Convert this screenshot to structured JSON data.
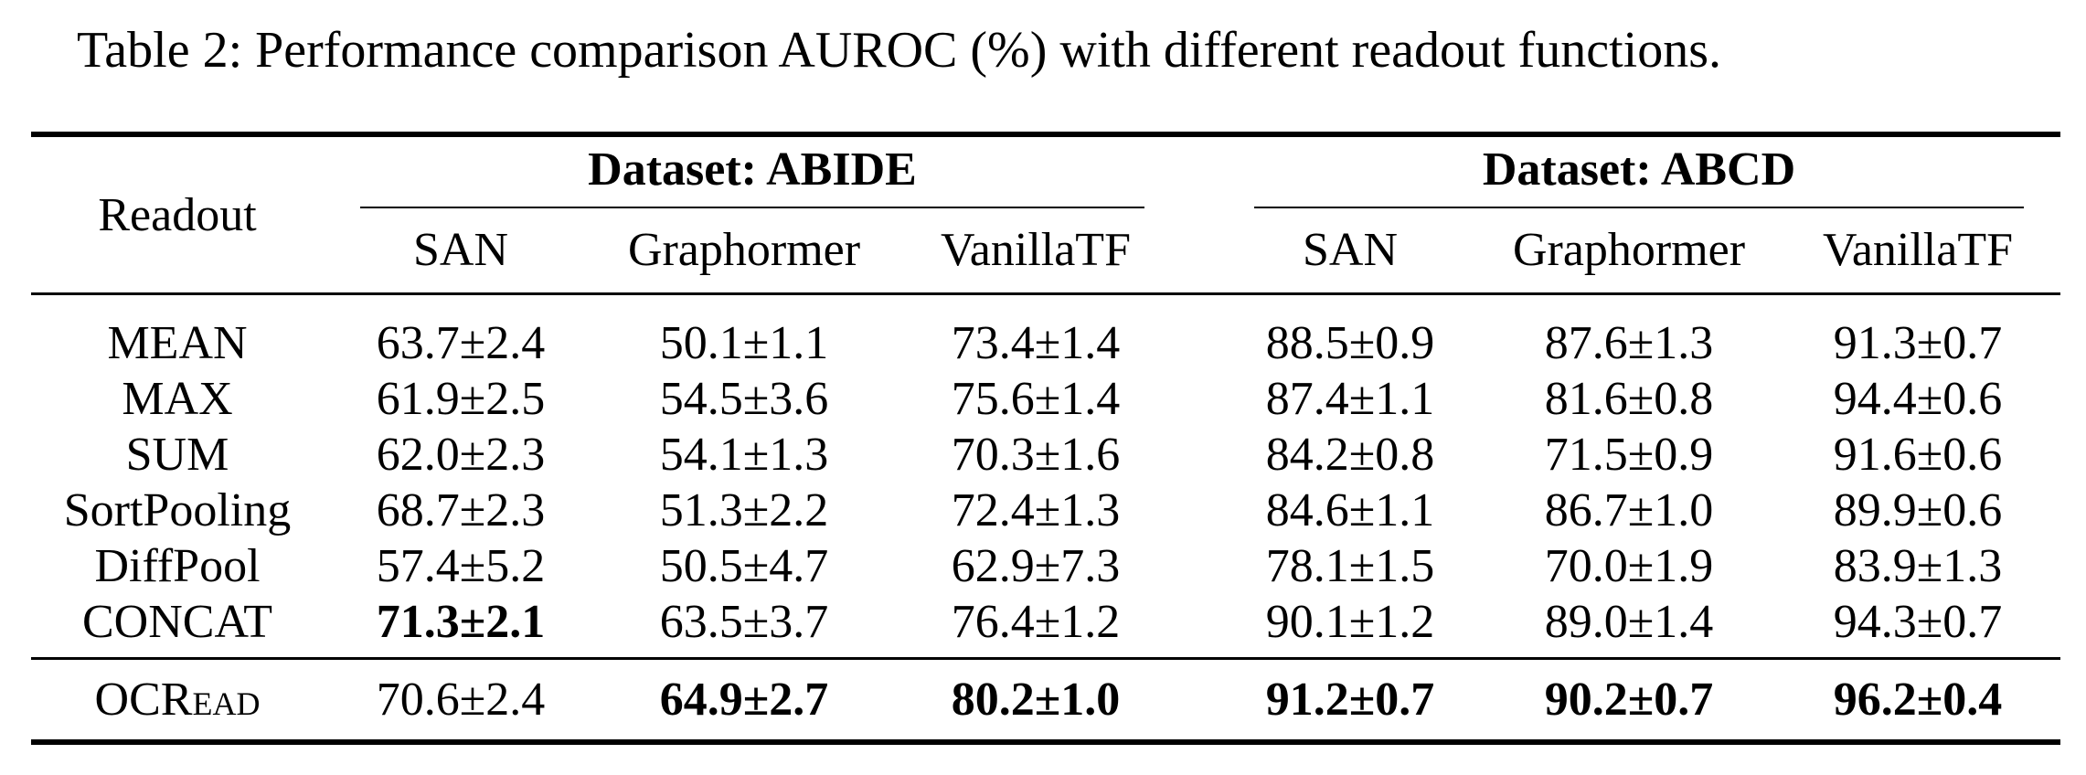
{
  "caption": "Table 2: Performance comparison AUROC (%) with different readout functions.",
  "table": {
    "corner_header": "Readout",
    "groups": [
      {
        "title": "Dataset: ABIDE",
        "columns": [
          "SAN",
          "Graphormer",
          "VanillaTF"
        ]
      },
      {
        "title": "Dataset: ABCD",
        "columns": [
          "SAN",
          "Graphormer",
          "VanillaTF"
        ]
      }
    ],
    "body_rows": [
      {
        "label": "MEAN",
        "smallcaps": false,
        "values": [
          {
            "text": "63.7±2.4",
            "bold": false
          },
          {
            "text": "50.1±1.1",
            "bold": false
          },
          {
            "text": "73.4±1.4",
            "bold": false
          },
          {
            "text": "88.5±0.9",
            "bold": false
          },
          {
            "text": "87.6±1.3",
            "bold": false
          },
          {
            "text": "91.3±0.7",
            "bold": false
          }
        ]
      },
      {
        "label": "MAX",
        "smallcaps": false,
        "values": [
          {
            "text": "61.9±2.5",
            "bold": false
          },
          {
            "text": "54.5±3.6",
            "bold": false
          },
          {
            "text": "75.6±1.4",
            "bold": false
          },
          {
            "text": "87.4±1.1",
            "bold": false
          },
          {
            "text": "81.6±0.8",
            "bold": false
          },
          {
            "text": "94.4±0.6",
            "bold": false
          }
        ]
      },
      {
        "label": "SUM",
        "smallcaps": false,
        "values": [
          {
            "text": "62.0±2.3",
            "bold": false
          },
          {
            "text": "54.1±1.3",
            "bold": false
          },
          {
            "text": "70.3±1.6",
            "bold": false
          },
          {
            "text": "84.2±0.8",
            "bold": false
          },
          {
            "text": "71.5±0.9",
            "bold": false
          },
          {
            "text": "91.6±0.6",
            "bold": false
          }
        ]
      },
      {
        "label": "SortPooling",
        "smallcaps": false,
        "values": [
          {
            "text": "68.7±2.3",
            "bold": false
          },
          {
            "text": "51.3±2.2",
            "bold": false
          },
          {
            "text": "72.4±1.3",
            "bold": false
          },
          {
            "text": "84.6±1.1",
            "bold": false
          },
          {
            "text": "86.7±1.0",
            "bold": false
          },
          {
            "text": "89.9±0.6",
            "bold": false
          }
        ]
      },
      {
        "label": "DiffPool",
        "smallcaps": false,
        "values": [
          {
            "text": "57.4±5.2",
            "bold": false
          },
          {
            "text": "50.5±4.7",
            "bold": false
          },
          {
            "text": "62.9±7.3",
            "bold": false
          },
          {
            "text": "78.1±1.5",
            "bold": false
          },
          {
            "text": "70.0±1.9",
            "bold": false
          },
          {
            "text": "83.9±1.3",
            "bold": false
          }
        ]
      },
      {
        "label": "CONCAT",
        "smallcaps": false,
        "values": [
          {
            "text": "71.3±2.1",
            "bold": true
          },
          {
            "text": "63.5±3.7",
            "bold": false
          },
          {
            "text": "76.4±1.2",
            "bold": false
          },
          {
            "text": "90.1±1.2",
            "bold": false
          },
          {
            "text": "89.0±1.4",
            "bold": false
          },
          {
            "text": "94.3±0.7",
            "bold": false
          }
        ]
      }
    ],
    "footer_rows": [
      {
        "label": "OCRead",
        "smallcaps": true,
        "values": [
          {
            "text": "70.6±2.4",
            "bold": false
          },
          {
            "text": "64.9±2.7",
            "bold": true
          },
          {
            "text": "80.2±1.0",
            "bold": true
          },
          {
            "text": "91.2±0.7",
            "bold": true
          },
          {
            "text": "90.2±0.7",
            "bold": true
          },
          {
            "text": "96.2±0.4",
            "bold": true
          }
        ]
      }
    ]
  }
}
